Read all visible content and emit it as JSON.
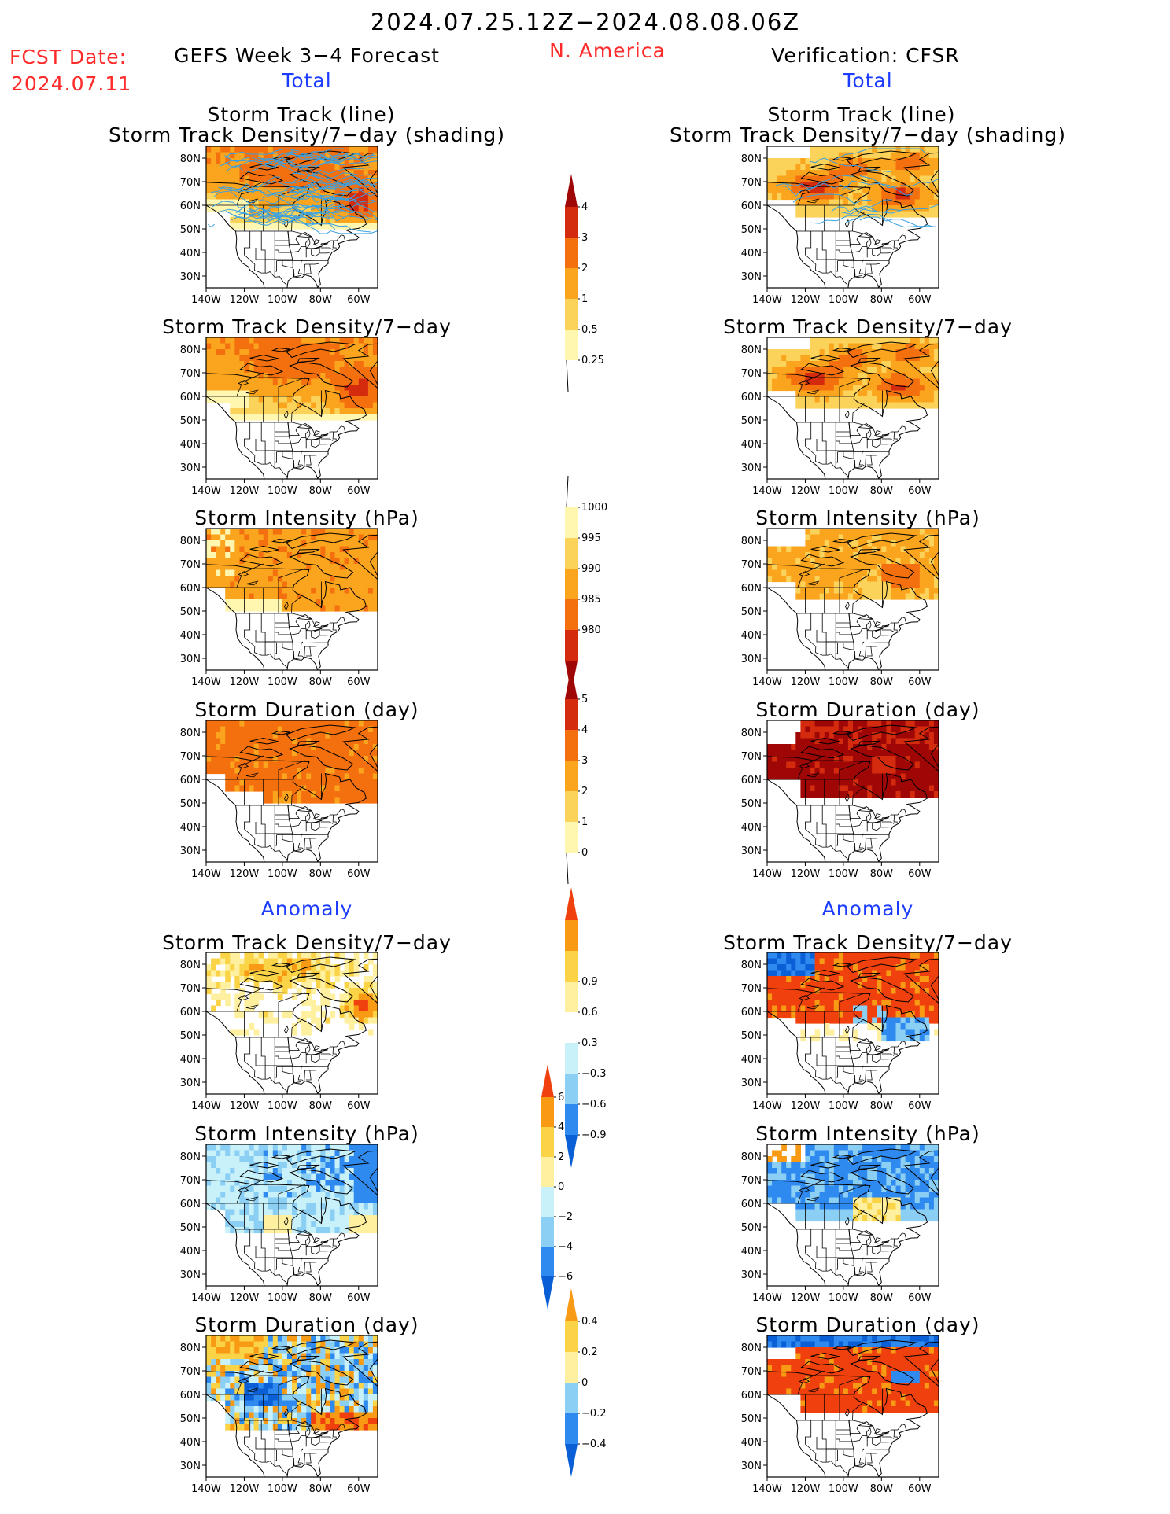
{
  "header": {
    "valid_period": "2024.07.25.12Z−2024.08.08.06Z",
    "fcst_label": "FCST Date:",
    "fcst_date": "2024.07.11",
    "left_title": "GEFS Week 3−4 Forecast",
    "region": "N. America",
    "right_title": "Verification: CFSR",
    "total_label": "Total",
    "anomaly_label": "Anomaly"
  },
  "panel_titles": {
    "track_line": "Storm Track (line)",
    "track_shading": "Storm Track Density/7−day (shading)",
    "density": "Storm Track Density/7−day",
    "intensity": "Storm Intensity (hPa)",
    "duration": "Storm Duration (day)"
  },
  "axes": {
    "lat_ticks": [
      "80N",
      "70N",
      "60N",
      "50N",
      "40N",
      "30N"
    ],
    "lon_ticks": [
      "140W",
      "120W",
      "100W",
      "80W",
      "60W"
    ]
  },
  "colors": {
    "map_lines": "#000000",
    "track_lines": "#3aa0e0",
    "pos_palette": [
      "#fff6b0",
      "#fcd35a",
      "#fba41e",
      "#f4700f",
      "#d42b0e",
      "#9f0707"
    ],
    "anom_palette": [
      "#0b5fd6",
      "#2f8af0",
      "#8ccff4",
      "#c9f1fa",
      "#ffffff",
      "#fff0a0",
      "#fbd347",
      "#f99a14",
      "#f0400e"
    ]
  },
  "colorbars": [
    {
      "name": "total-density",
      "levels": [
        "0.25",
        "0.5",
        "1",
        "2",
        "3",
        "4"
      ]
    },
    {
      "name": "total-intensity",
      "levels": [
        "1000",
        "995",
        "990",
        "985",
        "980"
      ]
    },
    {
      "name": "total-duration",
      "levels": [
        "0",
        "1",
        "2",
        "3",
        "4",
        "5"
      ]
    },
    {
      "name": "anomaly-density",
      "levels": [
        "−0.9",
        "−0.6",
        "−0.3",
        "0.3",
        "0.6",
        "0.9"
      ]
    },
    {
      "name": "anomaly-intensity",
      "levels": [
        "−6",
        "−4",
        "−2",
        "0",
        "2",
        "4",
        "6"
      ]
    },
    {
      "name": "anomaly-duration",
      "levels": [
        "−0.4",
        "−0.2",
        "0",
        "0.2",
        "0.4"
      ]
    }
  ],
  "chart_data": [
    {
      "type": "heatmap",
      "name": "gefs-storm-track-line-density",
      "title": "Storm Track (line) / Storm Track Density/7−day (shading)",
      "lat_range": [
        25,
        85
      ],
      "lon_range": [
        -140,
        -50
      ]
    },
    {
      "type": "heatmap",
      "name": "cfsr-storm-track-line-density",
      "title": "Storm Track (line) / Storm Track Density/7−day (shading)",
      "lat_range": [
        25,
        85
      ],
      "lon_range": [
        -140,
        -50
      ]
    },
    {
      "type": "heatmap",
      "name": "gefs-track-density",
      "title": "Storm Track Density/7−day",
      "lat_range": [
        25,
        85
      ],
      "lon_range": [
        -140,
        -50
      ]
    },
    {
      "type": "heatmap",
      "name": "cfsr-track-density",
      "title": "Storm Track Density/7−day",
      "lat_range": [
        25,
        85
      ],
      "lon_range": [
        -140,
        -50
      ]
    },
    {
      "type": "heatmap",
      "name": "gefs-intensity",
      "title": "Storm Intensity (hPa)",
      "lat_range": [
        25,
        85
      ],
      "lon_range": [
        -140,
        -50
      ]
    },
    {
      "type": "heatmap",
      "name": "cfsr-intensity",
      "title": "Storm Intensity (hPa)",
      "lat_range": [
        25,
        85
      ],
      "lon_range": [
        -140,
        -50
      ]
    },
    {
      "type": "heatmap",
      "name": "gefs-duration",
      "title": "Storm Duration (day)",
      "lat_range": [
        25,
        85
      ],
      "lon_range": [
        -140,
        -50
      ]
    },
    {
      "type": "heatmap",
      "name": "cfsr-duration",
      "title": "Storm Duration (day)",
      "lat_range": [
        25,
        85
      ],
      "lon_range": [
        -140,
        -50
      ]
    },
    {
      "type": "heatmap",
      "name": "gefs-density-anomaly",
      "title": "Storm Track Density/7−day",
      "lat_range": [
        25,
        85
      ],
      "lon_range": [
        -140,
        -50
      ]
    },
    {
      "type": "heatmap",
      "name": "cfsr-density-anomaly",
      "title": "Storm Track Density/7−day",
      "lat_range": [
        25,
        85
      ],
      "lon_range": [
        -140,
        -50
      ]
    },
    {
      "type": "heatmap",
      "name": "gefs-intensity-anomaly",
      "title": "Storm Intensity (hPa)",
      "lat_range": [
        25,
        85
      ],
      "lon_range": [
        -140,
        -50
      ]
    },
    {
      "type": "heatmap",
      "name": "cfsr-intensity-anomaly",
      "title": "Storm Intensity (hPa)",
      "lat_range": [
        25,
        85
      ],
      "lon_range": [
        -140,
        -50
      ]
    },
    {
      "type": "heatmap",
      "name": "gefs-duration-anomaly",
      "title": "Storm Duration (day)",
      "lat_range": [
        25,
        85
      ],
      "lon_range": [
        -140,
        -50
      ]
    },
    {
      "type": "heatmap",
      "name": "cfsr-duration-anomaly",
      "title": "Storm Duration (day)",
      "lat_range": [
        25,
        85
      ],
      "lon_range": [
        -140,
        -50
      ]
    }
  ]
}
